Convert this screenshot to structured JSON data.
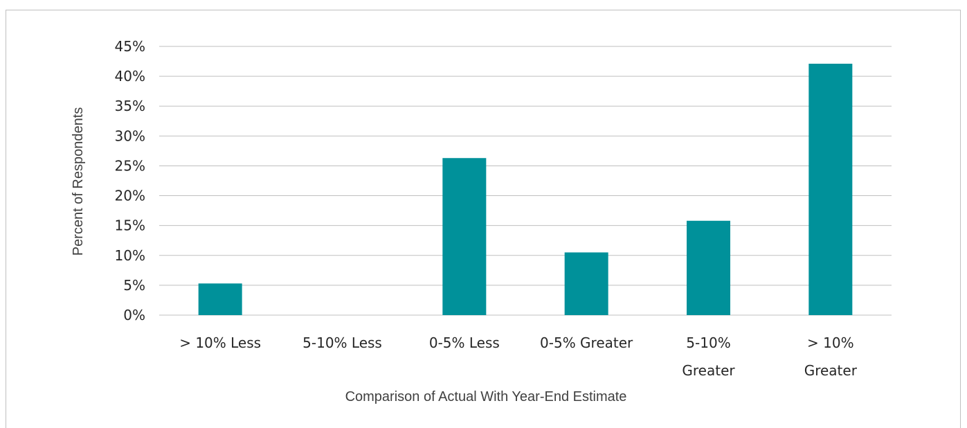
{
  "chart_data": {
    "type": "bar",
    "categories": [
      "> 10% Less",
      "5-10% Less",
      "0-5% Less",
      "0-5% Greater",
      "5-10% Greater",
      "> 10% Greater"
    ],
    "category_label_lines": [
      [
        "> 10% Less"
      ],
      [
        "5-10% Less"
      ],
      [
        "0-5% Less"
      ],
      [
        "0-5% Greater"
      ],
      [
        "5-10%",
        "Greater"
      ],
      [
        "> 10%",
        "Greater"
      ]
    ],
    "values": [
      5.3,
      0,
      26.3,
      10.5,
      15.8,
      42.1
    ],
    "value_unit": "%",
    "xlabel": "Comparison of Actual With Year-End Estimate",
    "ylabel": "Percent of Respondents",
    "ylim": [
      0,
      45
    ],
    "yticks": [
      0,
      5,
      10,
      15,
      20,
      25,
      30,
      35,
      40,
      45
    ],
    "ytick_labels": [
      "0%",
      "5%",
      "10%",
      "15%",
      "20%",
      "25%",
      "30%",
      "35%",
      "40%",
      "45%"
    ],
    "grid": true,
    "bar_color": "#00919A",
    "gridline_color": "#BFBFBF"
  }
}
